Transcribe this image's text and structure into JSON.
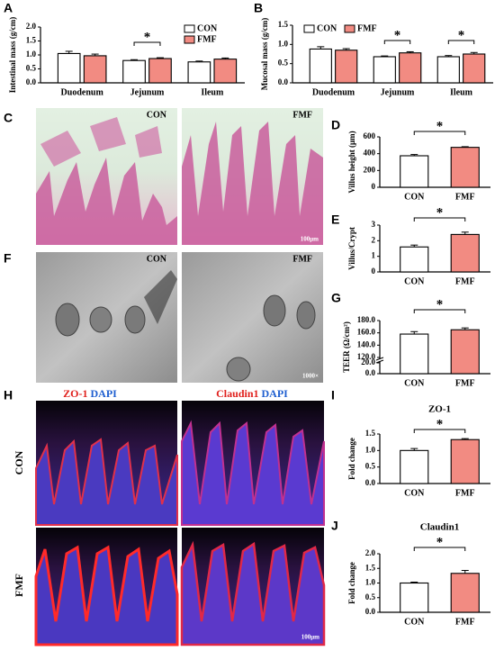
{
  "panel_labels": [
    "A",
    "B",
    "C",
    "D",
    "E",
    "F",
    "G",
    "H",
    "I",
    "J"
  ],
  "histology": {
    "labels": [
      "CON",
      "FMF"
    ],
    "scale": "100μm"
  },
  "tem": {
    "labels": [
      "CON",
      "FMF"
    ],
    "scale": "1000×"
  },
  "immunofluorescence": {
    "stains": [
      {
        "marker": "ZO-1",
        "counter": "DAPI"
      },
      {
        "marker": "Claudin1",
        "counter": "DAPI"
      }
    ],
    "rows": [
      "CON",
      "FMF"
    ],
    "scale": "100μm"
  },
  "chart_data": [
    {
      "type": "bar",
      "ylabel": "Intestinal mass (g/cm)",
      "categories": [
        "Duodenum",
        "Jejunum",
        "Ileum"
      ],
      "series": [
        {
          "name": "CON",
          "color": "#ffffff",
          "values": [
            1.05,
            0.8,
            0.75
          ],
          "errors": [
            0.08,
            0.03,
            0.03
          ]
        },
        {
          "name": "FMF",
          "color": "#f28b82",
          "values": [
            0.97,
            0.87,
            0.85
          ],
          "errors": [
            0.06,
            0.03,
            0.04
          ]
        }
      ],
      "ylim": [
        0,
        2
      ],
      "yticks": [
        {
          "value": 0,
          "label": "0.0"
        },
        {
          "value": 0.5,
          "label": "0.5"
        },
        {
          "value": 1,
          "label": "1.0"
        },
        {
          "value": 1.5,
          "label": "1.5"
        },
        {
          "value": 2,
          "label": "2.0"
        }
      ],
      "annotations": [
        "*"
      ]
    },
    {
      "type": "bar",
      "ylabel": "Mucosal mass (g/cm)",
      "categories": [
        "Duodenum",
        "Jejunum",
        "Ileum"
      ],
      "series": [
        {
          "name": "CON",
          "color": "#ffffff",
          "values": [
            0.88,
            0.68,
            0.68
          ],
          "errors": [
            0.06,
            0.02,
            0.03
          ]
        },
        {
          "name": "FMF",
          "color": "#f28b82",
          "values": [
            0.85,
            0.78,
            0.75
          ],
          "errors": [
            0.04,
            0.03,
            0.04
          ]
        }
      ],
      "ylim": [
        0,
        1.5
      ],
      "yticks": [
        {
          "value": 0,
          "label": "0.0"
        },
        {
          "value": 0.5,
          "label": "0.5"
        },
        {
          "value": 1,
          "label": "1.0"
        },
        {
          "value": 1.5,
          "label": "1.5"
        }
      ],
      "annotations": [
        "*",
        "*"
      ]
    },
    {
      "type": "bar",
      "ylabel": "Villus height (μm)",
      "categories": [
        "CON",
        "FMF"
      ],
      "colors": [
        "#ffffff",
        "#f28b82"
      ],
      "values": [
        375,
        475
      ],
      "errors": [
        15,
        8
      ],
      "ylim": [
        0,
        600
      ],
      "yticks": [
        0,
        200,
        400,
        600
      ],
      "annotations": [
        "*"
      ]
    },
    {
      "type": "bar",
      "ylabel": "Villus/Crypt",
      "categories": [
        "CON",
        "FMF"
      ],
      "colors": [
        "#ffffff",
        "#f28b82"
      ],
      "values": [
        1.6,
        2.4
      ],
      "errors": [
        0.12,
        0.15
      ],
      "ylim": [
        0,
        3
      ],
      "yticks": [
        0,
        1,
        2,
        3
      ],
      "annotations": [
        "*"
      ]
    },
    {
      "type": "bar",
      "ylabel": "TEER (Ω/cm²)",
      "categories": [
        "CON",
        "FMF"
      ],
      "colors": [
        "#ffffff",
        "#f28b82"
      ],
      "values": [
        158,
        165
      ],
      "errors": [
        4,
        3
      ],
      "ylim": [
        0,
        180
      ],
      "axis_break": [
        20,
        120
      ],
      "yticks": [
        {
          "value": 0,
          "label": "0.0"
        },
        {
          "value": 20,
          "label": "20.0"
        },
        {
          "value": 120,
          "label": "120.0"
        },
        {
          "value": 140,
          "label": "140.0"
        },
        {
          "value": 160,
          "label": "160.0"
        },
        {
          "value": 180,
          "label": "180.0"
        }
      ],
      "annotations": [
        "*"
      ]
    },
    {
      "type": "bar",
      "title": "ZO-1",
      "ylabel": "Fold change",
      "categories": [
        "CON",
        "FMF"
      ],
      "colors": [
        "#ffffff",
        "#f28b82"
      ],
      "values": [
        1.0,
        1.33
      ],
      "errors": [
        0.06,
        0.03
      ],
      "ylim": [
        0,
        1.5
      ],
      "yticks": [
        {
          "value": 0,
          "label": "0.0"
        },
        {
          "value": 0.5,
          "label": "0.5"
        },
        {
          "value": 1,
          "label": "1.0"
        },
        {
          "value": 1.5,
          "label": "1.5"
        }
      ],
      "annotations": [
        "*"
      ]
    },
    {
      "type": "bar",
      "title": "Claudin1",
      "ylabel": "Fold change",
      "categories": [
        "CON",
        "FMF"
      ],
      "colors": [
        "#ffffff",
        "#f28b82"
      ],
      "values": [
        1.0,
        1.33
      ],
      "errors": [
        0.03,
        0.1
      ],
      "ylim": [
        0,
        2
      ],
      "yticks": [
        {
          "value": 0,
          "label": "0.0"
        },
        {
          "value": 0.5,
          "label": "0.5"
        },
        {
          "value": 1,
          "label": "1.0"
        },
        {
          "value": 1.5,
          "label": "1.5"
        },
        {
          "value": 2,
          "label": "2.0"
        }
      ],
      "annotations": [
        "*"
      ]
    }
  ]
}
